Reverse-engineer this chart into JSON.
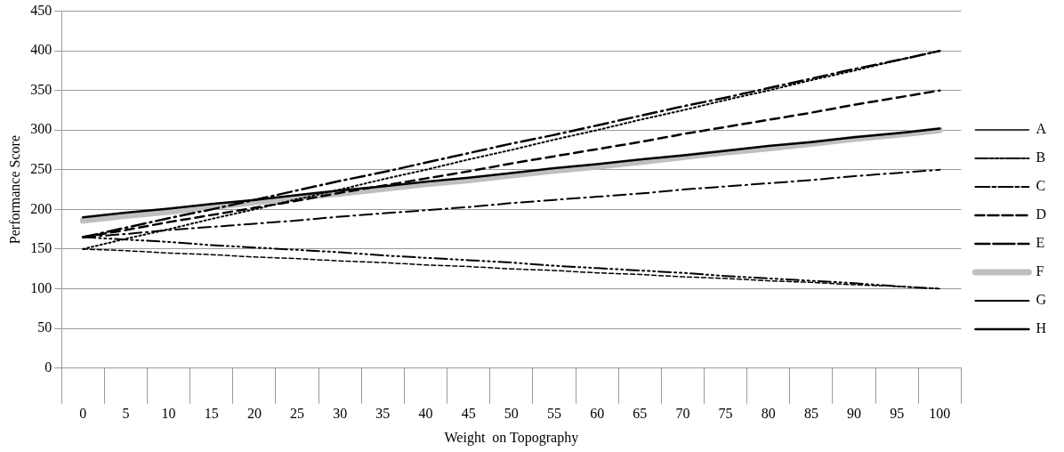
{
  "chart_data": {
    "type": "line",
    "xlabel": "Weight  on Topography",
    "ylabel": "Performance Score",
    "categories": [
      "0",
      "5",
      "10",
      "15",
      "20",
      "25",
      "30",
      "35",
      "40",
      "45",
      "50",
      "55",
      "60",
      "65",
      "70",
      "75",
      "80",
      "85",
      "90",
      "95",
      "100"
    ],
    "ylim": [
      0,
      450
    ],
    "yticks": [
      0,
      50,
      100,
      150,
      200,
      250,
      300,
      350,
      400,
      450
    ],
    "grid": "y",
    "legend": "right",
    "marker": "none",
    "series": [
      {
        "name": "A",
        "color": "#000000",
        "line_style": "dashed",
        "values": [
          150,
          148,
          145,
          143,
          140,
          138,
          135,
          133,
          130,
          128,
          125,
          123,
          120,
          118,
          115,
          113,
          110,
          108,
          105,
          103,
          100
        ]
      },
      {
        "name": "B",
        "color": "#000000",
        "line_style": "dashed",
        "values": [
          165,
          162,
          159,
          155,
          152,
          149,
          146,
          142,
          139,
          136,
          133,
          129,
          126,
          123,
          120,
          116,
          113,
          110,
          107,
          103,
          100
        ]
      },
      {
        "name": "C",
        "color": "#000000",
        "line_style": "dashed",
        "values": [
          165,
          169,
          174,
          178,
          182,
          186,
          191,
          195,
          199,
          203,
          208,
          212,
          216,
          220,
          225,
          229,
          233,
          237,
          242,
          246,
          250
        ]
      },
      {
        "name": "D",
        "color": "#000000",
        "line_style": "dashed",
        "values": [
          165,
          174,
          184,
          193,
          202,
          211,
          221,
          230,
          239,
          248,
          258,
          267,
          276,
          285,
          295,
          304,
          313,
          322,
          332,
          341,
          350
        ]
      },
      {
        "name": "E",
        "color": "#000000",
        "line_style": "dashed",
        "values": [
          165,
          177,
          189,
          200,
          212,
          224,
          236,
          247,
          259,
          271,
          283,
          294,
          306,
          318,
          330,
          341,
          353,
          365,
          377,
          388,
          400
        ]
      },
      {
        "name": "F",
        "color": "#bfbfbf",
        "line_style": "solid",
        "values": [
          186,
          192,
          197,
          203,
          209,
          215,
          220,
          226,
          232,
          237,
          243,
          249,
          254,
          260,
          266,
          272,
          277,
          283,
          289,
          294,
          300
        ]
      },
      {
        "name": "G",
        "color": "#000000",
        "line_style": "dotted",
        "values": [
          150,
          163,
          175,
          188,
          200,
          213,
          225,
          238,
          250,
          263,
          275,
          288,
          300,
          313,
          325,
          338,
          350,
          363,
          375,
          388,
          400
        ]
      },
      {
        "name": "H",
        "color": "#000000",
        "line_style": "solid",
        "values": [
          190,
          196,
          201,
          207,
          212,
          218,
          224,
          229,
          235,
          240,
          246,
          252,
          257,
          263,
          268,
          274,
          280,
          285,
          291,
          296,
          302
        ]
      }
    ]
  }
}
